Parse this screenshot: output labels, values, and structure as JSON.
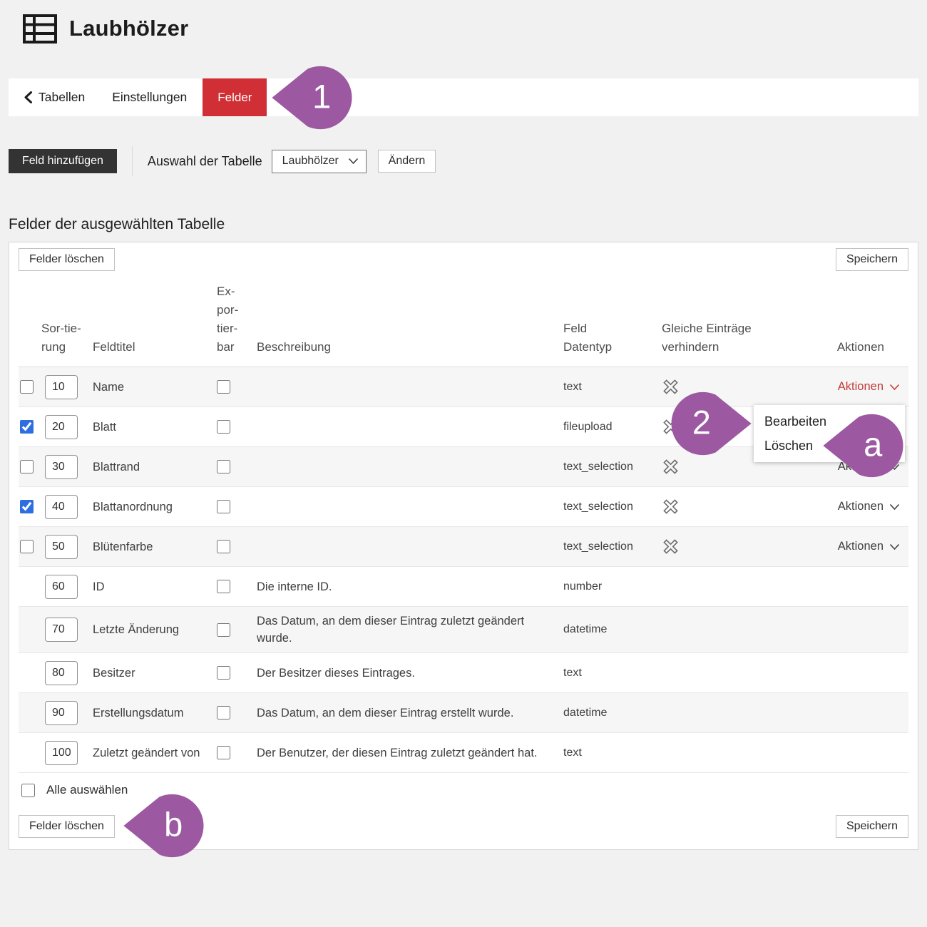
{
  "header": {
    "title": "Laubhölzer"
  },
  "nav": {
    "back_label": "Tabellen",
    "settings_label": "Einstellungen",
    "fields_label": "Felder"
  },
  "toolbar": {
    "add_field_label": "Feld hinzufügen",
    "table_select_label": "Auswahl der Tabelle",
    "table_select_value": "Laubhölzer",
    "change_label": "Ändern"
  },
  "section": {
    "title": "Felder der ausgewählten Tabelle"
  },
  "table": {
    "toolbar": {
      "delete_fields_label": "Felder löschen",
      "save_label": "Speichern"
    },
    "columns": {
      "sort": "Sor-tie-rung",
      "title": "Feldtitel",
      "exportable": "Ex-por-tier-bar",
      "description": "Beschreibung",
      "datatype": "Feld Datentyp",
      "prevent_duplicates": "Gleiche Einträge verhindern",
      "actions": "Aktionen"
    },
    "actions_label": "Aktionen",
    "rows": [
      {
        "selectable": true,
        "selected": false,
        "sort": "10",
        "title": "Name",
        "export_checked": false,
        "description": "",
        "datatype": "text",
        "prevent_duplicates": true,
        "has_actions": true,
        "actions_open": true
      },
      {
        "selectable": true,
        "selected": true,
        "sort": "20",
        "title": "Blatt",
        "export_checked": false,
        "description": "",
        "datatype": "fileupload",
        "prevent_duplicates": true,
        "has_actions": true,
        "actions_open": false
      },
      {
        "selectable": true,
        "selected": false,
        "sort": "30",
        "title": "Blattrand",
        "export_checked": false,
        "description": "",
        "datatype": "text_selection",
        "prevent_duplicates": true,
        "has_actions": true,
        "actions_open": false
      },
      {
        "selectable": true,
        "selected": true,
        "sort": "40",
        "title": "Blattanordnung",
        "export_checked": false,
        "description": "",
        "datatype": "text_selection",
        "prevent_duplicates": true,
        "has_actions": true,
        "actions_open": false
      },
      {
        "selectable": true,
        "selected": false,
        "sort": "50",
        "title": "Blütenfarbe",
        "export_checked": false,
        "description": "",
        "datatype": "text_selection",
        "prevent_duplicates": true,
        "has_actions": true,
        "actions_open": false
      },
      {
        "selectable": false,
        "selected": false,
        "sort": "60",
        "title": "ID",
        "export_checked": false,
        "description": "Die interne ID.",
        "datatype": "number",
        "prevent_duplicates": false,
        "has_actions": false,
        "actions_open": false
      },
      {
        "selectable": false,
        "selected": false,
        "sort": "70",
        "title": "Letzte Änderung",
        "export_checked": false,
        "description": "Das Datum, an dem dieser Eintrag zuletzt geändert wurde.",
        "datatype": "datetime",
        "prevent_duplicates": false,
        "has_actions": false,
        "actions_open": false
      },
      {
        "selectable": false,
        "selected": false,
        "sort": "80",
        "title": "Besitzer",
        "export_checked": false,
        "description": "Der Besitzer dieses Eintrages.",
        "datatype": "text",
        "prevent_duplicates": false,
        "has_actions": false,
        "actions_open": false
      },
      {
        "selectable": false,
        "selected": false,
        "sort": "90",
        "title": "Erstellungsdatum",
        "export_checked": false,
        "description": "Das Datum, an dem dieser Eintrag erstellt wurde.",
        "datatype": "datetime",
        "prevent_duplicates": false,
        "has_actions": false,
        "actions_open": false
      },
      {
        "selectable": false,
        "selected": false,
        "sort": "100",
        "title": "Zuletzt geändert von",
        "export_checked": false,
        "description": "Der Benutzer, der diesen Eintrag zuletzt geändert hat.",
        "datatype": "text",
        "prevent_duplicates": false,
        "has_actions": false,
        "actions_open": false
      }
    ],
    "footer": {
      "select_all_label": "Alle auswählen",
      "delete_fields_label": "Felder löschen",
      "save_label": "Speichern"
    }
  },
  "context_menu": {
    "items": [
      "Bearbeiten",
      "Löschen"
    ]
  },
  "callouts": {
    "step_1": "1",
    "step_2": "2",
    "step_a": "a",
    "step_b": "b"
  },
  "icons": {
    "app": "table-icon",
    "nav_back": "chevron-left-icon",
    "select_caret": "chevron-down-icon",
    "actions_caret": "chevron-down-icon",
    "prevent_duplicates": "crossed-x-icon"
  },
  "colors": {
    "page_bg": "#f1f1f1",
    "accent_red": "#d02f35",
    "actions_red": "#c23b38",
    "callout_purple": "#9c58a0",
    "checkbox_blue": "#2d6ee0",
    "row_alt_bg": "#f6f6f6"
  }
}
